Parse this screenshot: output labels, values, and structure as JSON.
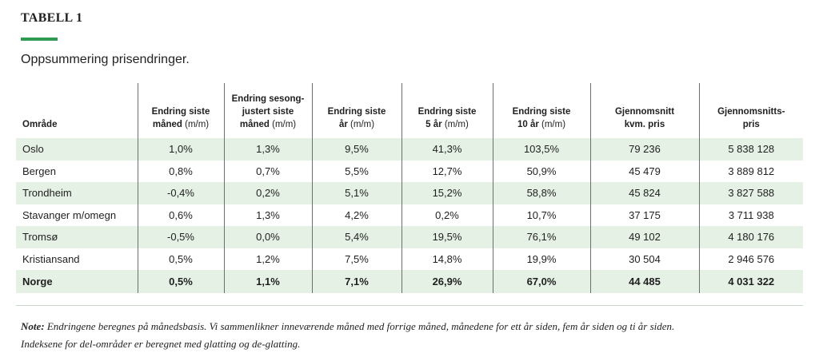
{
  "heading": {
    "title": "TABELL 1",
    "accent_color": "#2e9a52"
  },
  "subtitle": "Oppsummering prisendringer.",
  "table": {
    "row_stripe_color": "#e6f1e6",
    "columns": [
      {
        "line1": "",
        "line2": "",
        "line3": "Område",
        "unit": ""
      },
      {
        "line1": "",
        "line2": "Endring siste",
        "line3": "måned",
        "unit": "(m/m)"
      },
      {
        "line1": "Endring sesong-",
        "line2": "justert siste",
        "line3": "måned",
        "unit": "(m/m)"
      },
      {
        "line1": "",
        "line2": "Endring siste",
        "line3": "år",
        "unit": "(m/m)"
      },
      {
        "line1": "",
        "line2": "Endring siste",
        "line3": "5 år",
        "unit": "(m/m)"
      },
      {
        "line1": "",
        "line2": "Endring siste",
        "line3": "10 år",
        "unit": "(m/m)"
      },
      {
        "line1": "",
        "line2": "Gjennomsnitt",
        "line3": "kvm. pris",
        "unit": ""
      },
      {
        "line1": "",
        "line2": "Gjennomsnitts-",
        "line3": "pris",
        "unit": ""
      }
    ],
    "rows": [
      [
        "Oslo",
        "1,0%",
        "1,3%",
        "9,5%",
        "41,3%",
        "103,5%",
        "79 236",
        "5 838 128"
      ],
      [
        "Bergen",
        "0,8%",
        "0,7%",
        "5,5%",
        "12,7%",
        "50,9%",
        "45 479",
        "3 889 812"
      ],
      [
        "Trondheim",
        "-0,4%",
        "0,2%",
        "5,1%",
        "15,2%",
        "58,8%",
        "45 824",
        "3 827 588"
      ],
      [
        "Stavanger m/omegn",
        "0,6%",
        "1,3%",
        "4,2%",
        "0,2%",
        "10,7%",
        "37 175",
        "3 711 938"
      ],
      [
        "Tromsø",
        "-0,5%",
        "0,0%",
        "5,4%",
        "19,5%",
        "76,1%",
        "49 102",
        "4 180 176"
      ],
      [
        "Kristiansand",
        "0,5%",
        "1,2%",
        "7,5%",
        "14,8%",
        "19,9%",
        "30 504",
        "2 946 576"
      ]
    ],
    "total": [
      "Norge",
      "0,5%",
      "1,1%",
      "7,1%",
      "26,9%",
      "67,0%",
      "44 485",
      "4 031 322"
    ]
  },
  "note": {
    "label": "Note:",
    "line1": "Endringene beregnes på månedsbasis. Vi sammenlikner inneværende måned med forrige måned, månedene for ett år siden, fem år siden og ti år siden.",
    "line2": "Indeksene for del-områder er beregnet med glatting og de-glatting."
  }
}
